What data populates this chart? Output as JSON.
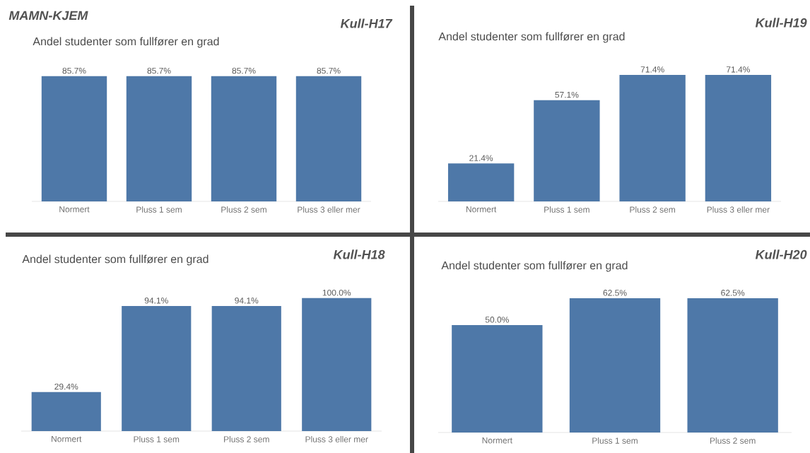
{
  "chart_data": [
    {
      "type": "bar",
      "title": "Andel studenter som fullfører en grad",
      "subtitle": "Kull-H17",
      "annotations": [
        "MAMN-KJEM"
      ],
      "categories": [
        "Normert",
        "Pluss 1 sem",
        "Pluss 2 sem",
        "Pluss 3 eller mer"
      ],
      "values": [
        85.7,
        85.7,
        85.7,
        85.7
      ],
      "value_labels": [
        "85.7%",
        "85.7%",
        "85.7%",
        "85.7%"
      ],
      "color": "#4e78a8"
    },
    {
      "type": "bar",
      "title": "Andel studenter som fullfører en grad",
      "subtitle": "Kull-H19",
      "categories": [
        "Normert",
        "Pluss 1 sem",
        "Pluss 2 sem",
        "Pluss 3 eller mer"
      ],
      "values": [
        21.4,
        57.1,
        71.4,
        71.4
      ],
      "value_labels": [
        "21.4%",
        "57.1%",
        "71.4%",
        "71.4%"
      ],
      "color": "#4e78a8"
    },
    {
      "type": "bar",
      "title": "Andel studenter som fullfører en grad",
      "subtitle": "Kull-H18",
      "categories": [
        "Normert",
        "Pluss 1 sem",
        "Pluss 2 sem",
        "Pluss 3 eller mer"
      ],
      "values": [
        29.4,
        94.1,
        94.1,
        100.0
      ],
      "value_labels": [
        "29.4%",
        "94.1%",
        "94.1%",
        "100.0%"
      ],
      "color": "#4e78a8"
    },
    {
      "type": "bar",
      "title": "Andel studenter som fullfører en grad",
      "subtitle": "Kull-H20",
      "categories": [
        "Normert",
        "Pluss 1 sem",
        "Pluss 2 sem"
      ],
      "values": [
        50.0,
        62.5,
        62.5
      ],
      "value_labels": [
        "50.0%",
        "62.5%",
        "62.5%"
      ],
      "color": "#4e78a8"
    }
  ]
}
